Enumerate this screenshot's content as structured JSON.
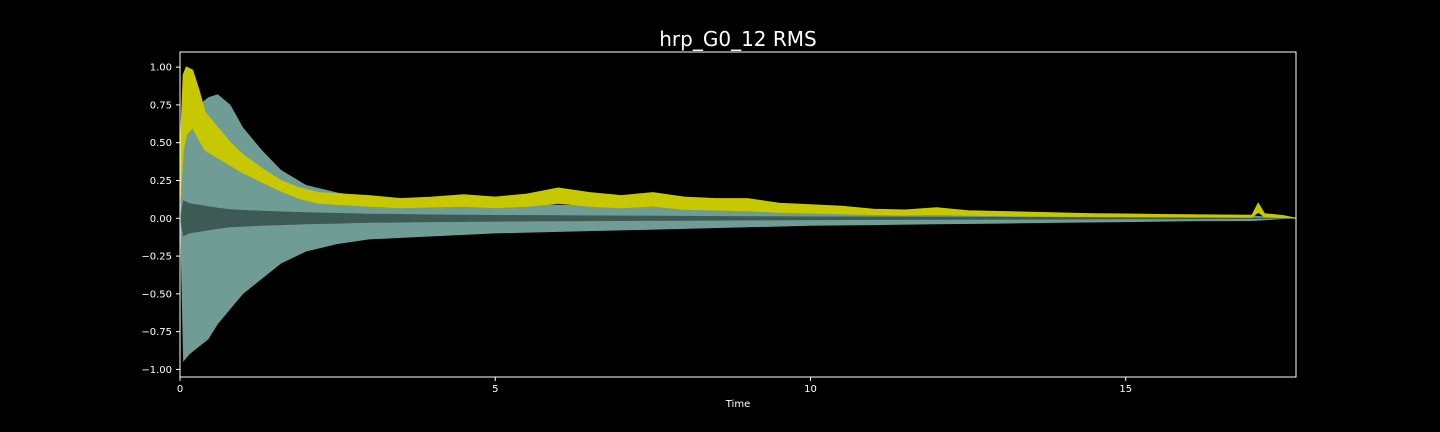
{
  "chart_data": {
    "type": "area",
    "title": "hrp_G0_12 RMS",
    "xlabel": "Time",
    "ylabel": "",
    "xlim": [
      0,
      17.7
    ],
    "ylim": [
      -1.05,
      1.1
    ],
    "xticks": [
      0,
      5,
      10,
      15
    ],
    "yticks": [
      -1.0,
      -0.75,
      -0.5,
      -0.25,
      0.0,
      0.25,
      0.5,
      0.75,
      1.0
    ],
    "ytick_labels": [
      "−1.00",
      "−0.75",
      "−0.50",
      "−0.25",
      "0.00",
      "0.25",
      "0.50",
      "0.75",
      "1.00"
    ],
    "grid": false,
    "colors": {
      "background": "#000000",
      "axes_background": "#000000",
      "waveform": "#6f9c95",
      "waveform_inner": "#3e5a55",
      "rms": "#c8c800"
    },
    "series": [
      {
        "kind": "waveform_envelope",
        "x": [
          0,
          0.05,
          0.15,
          0.3,
          0.45,
          0.6,
          0.8,
          1.0,
          1.3,
          1.6,
          2.0,
          2.5,
          3.0,
          3.5,
          4.0,
          5.0,
          6.0,
          7.0,
          8.0,
          9.0,
          10.0,
          11.0,
          12.0,
          13.0,
          14.0,
          15.0,
          16.0,
          17.0,
          17.7
        ],
        "upper": [
          0.0,
          0.55,
          0.7,
          0.75,
          0.8,
          0.82,
          0.75,
          0.6,
          0.45,
          0.32,
          0.22,
          0.17,
          0.14,
          0.13,
          0.12,
          0.1,
          0.09,
          0.08,
          0.07,
          0.06,
          0.05,
          0.045,
          0.04,
          0.035,
          0.03,
          0.025,
          0.02,
          0.018,
          0.0
        ],
        "lower": [
          0.0,
          -0.95,
          -0.9,
          -0.85,
          -0.8,
          -0.7,
          -0.6,
          -0.5,
          -0.4,
          -0.3,
          -0.22,
          -0.17,
          -0.14,
          -0.13,
          -0.12,
          -0.1,
          -0.09,
          -0.08,
          -0.07,
          -0.06,
          -0.05,
          -0.045,
          -0.04,
          -0.035,
          -0.03,
          -0.025,
          -0.02,
          -0.018,
          0.0
        ],
        "inner": [
          0.0,
          0.12,
          0.1,
          0.09,
          0.08,
          0.07,
          0.06,
          0.055,
          0.05,
          0.045,
          0.04,
          0.035,
          0.03,
          0.028,
          0.025,
          0.022,
          0.02,
          0.018,
          0.016,
          0.014,
          0.012,
          0.011,
          0.01,
          0.009,
          0.008,
          0.007,
          0.006,
          0.005,
          0.0
        ]
      },
      {
        "kind": "rms_band",
        "x": [
          0,
          0.05,
          0.1,
          0.2,
          0.3,
          0.4,
          0.6,
          0.8,
          1.0,
          1.3,
          1.6,
          1.9,
          2.2,
          2.6,
          3.0,
          3.5,
          4.0,
          4.5,
          5.0,
          5.5,
          6.0,
          6.5,
          7.0,
          7.5,
          8.0,
          8.5,
          9.0,
          9.5,
          10.0,
          10.5,
          11.0,
          11.5,
          12.0,
          12.5,
          13.0,
          13.5,
          14.0,
          14.5,
          15.0,
          15.5,
          16.0,
          16.5,
          17.0,
          17.1,
          17.2,
          17.5,
          17.7
        ],
        "upper": [
          0.4,
          0.95,
          1.0,
          0.98,
          0.85,
          0.7,
          0.6,
          0.5,
          0.42,
          0.33,
          0.25,
          0.2,
          0.17,
          0.16,
          0.15,
          0.13,
          0.14,
          0.155,
          0.14,
          0.16,
          0.2,
          0.17,
          0.15,
          0.17,
          0.14,
          0.13,
          0.13,
          0.1,
          0.09,
          0.08,
          0.06,
          0.055,
          0.07,
          0.05,
          0.045,
          0.04,
          0.035,
          0.03,
          0.028,
          0.025,
          0.024,
          0.022,
          0.02,
          0.1,
          0.03,
          0.018,
          0.0
        ],
        "lower": [
          0.1,
          0.45,
          0.55,
          0.6,
          0.52,
          0.45,
          0.4,
          0.35,
          0.3,
          0.24,
          0.18,
          0.13,
          0.1,
          0.09,
          0.08,
          0.07,
          0.075,
          0.08,
          0.07,
          0.08,
          0.1,
          0.08,
          0.07,
          0.08,
          0.06,
          0.055,
          0.05,
          0.04,
          0.035,
          0.03,
          0.025,
          0.022,
          0.025,
          0.02,
          0.018,
          0.015,
          0.013,
          0.012,
          0.011,
          0.01,
          0.009,
          0.008,
          0.007,
          0.04,
          0.01,
          0.006,
          0.0
        ]
      }
    ]
  }
}
